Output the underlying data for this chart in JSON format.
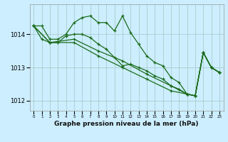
{
  "title": "Graphe pression niveau de la mer (hPa)",
  "background_color": "#cceeff",
  "grid_color": "#aacccc",
  "line_color": "#1a6b1a",
  "ylim": [
    1011.7,
    1014.9
  ],
  "yticks": [
    1012,
    1013,
    1014
  ],
  "series": [
    {
      "x": [
        0,
        1,
        2,
        3,
        4,
        5,
        6,
        7,
        8,
        9,
        10,
        11,
        12,
        13,
        14,
        15,
        16,
        17,
        18,
        19,
        20,
        21,
        22,
        23
      ],
      "y": [
        1014.25,
        1014.25,
        1013.85,
        1013.85,
        1014.0,
        1014.35,
        1014.5,
        1014.55,
        1014.35,
        1014.35,
        1014.1,
        1014.55,
        1014.05,
        1013.7,
        1013.35,
        1013.15,
        1013.05,
        1012.7,
        1012.55,
        1012.2,
        1012.15,
        1013.45,
        1013.0,
        1012.85
      ]
    },
    {
      "x": [
        0,
        1,
        2,
        3,
        4,
        5,
        6,
        7,
        8,
        9,
        10,
        11,
        12,
        13,
        14,
        15,
        16,
        17,
        18,
        19,
        20,
        21,
        22,
        23
      ],
      "y": [
        1014.25,
        1013.85,
        1013.75,
        1013.75,
        1013.95,
        1014.0,
        1014.0,
        1013.9,
        1013.7,
        1013.55,
        1013.3,
        1013.05,
        1013.1,
        1013.0,
        1012.9,
        1012.75,
        1012.65,
        1012.45,
        1012.35,
        1012.2,
        1012.15,
        1013.45,
        1013.0,
        1012.85
      ]
    },
    {
      "x": [
        0,
        2,
        5,
        8,
        11,
        14,
        17,
        19,
        20,
        21,
        22,
        23
      ],
      "y": [
        1014.25,
        1013.75,
        1013.85,
        1013.5,
        1013.2,
        1012.8,
        1012.45,
        1012.2,
        1012.15,
        1013.45,
        1013.0,
        1012.85
      ]
    },
    {
      "x": [
        0,
        2,
        5,
        8,
        11,
        14,
        17,
        19,
        20,
        21,
        22,
        23
      ],
      "y": [
        1014.25,
        1013.75,
        1013.75,
        1013.35,
        1013.0,
        1012.65,
        1012.3,
        1012.2,
        1012.15,
        1013.45,
        1013.0,
        1012.85
      ]
    }
  ]
}
